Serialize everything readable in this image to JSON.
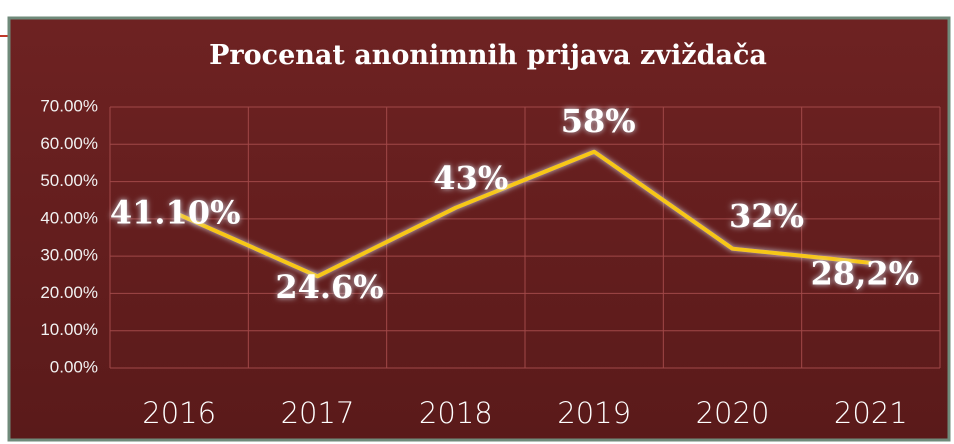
{
  "chart_data": {
    "type": "line",
    "title": "Procenat anonimnih prijava zviždača",
    "categories": [
      "2016",
      "2017",
      "2018",
      "2019",
      "2020",
      "2021"
    ],
    "series": [
      {
        "name": "Procenat",
        "color": "#f7c719",
        "values": [
          41.1,
          24.6,
          43,
          58,
          32,
          28.2
        ],
        "value_labels": [
          "41.10%",
          "24.6%",
          "43%",
          "58%",
          "32%",
          "28,2%"
        ]
      }
    ],
    "ylim": [
      0,
      70
    ],
    "yticks": [
      {
        "value": 0,
        "label": "0.00%"
      },
      {
        "value": 10,
        "label": "10.00%"
      },
      {
        "value": 20,
        "label": "20.00%"
      },
      {
        "value": 30,
        "label": "30.00%"
      },
      {
        "value": 40,
        "label": "40.00%"
      },
      {
        "value": 50,
        "label": "50.00%"
      },
      {
        "value": 60,
        "label": "60.00%"
      },
      {
        "value": 70,
        "label": "70.00%"
      }
    ],
    "grid": true
  }
}
